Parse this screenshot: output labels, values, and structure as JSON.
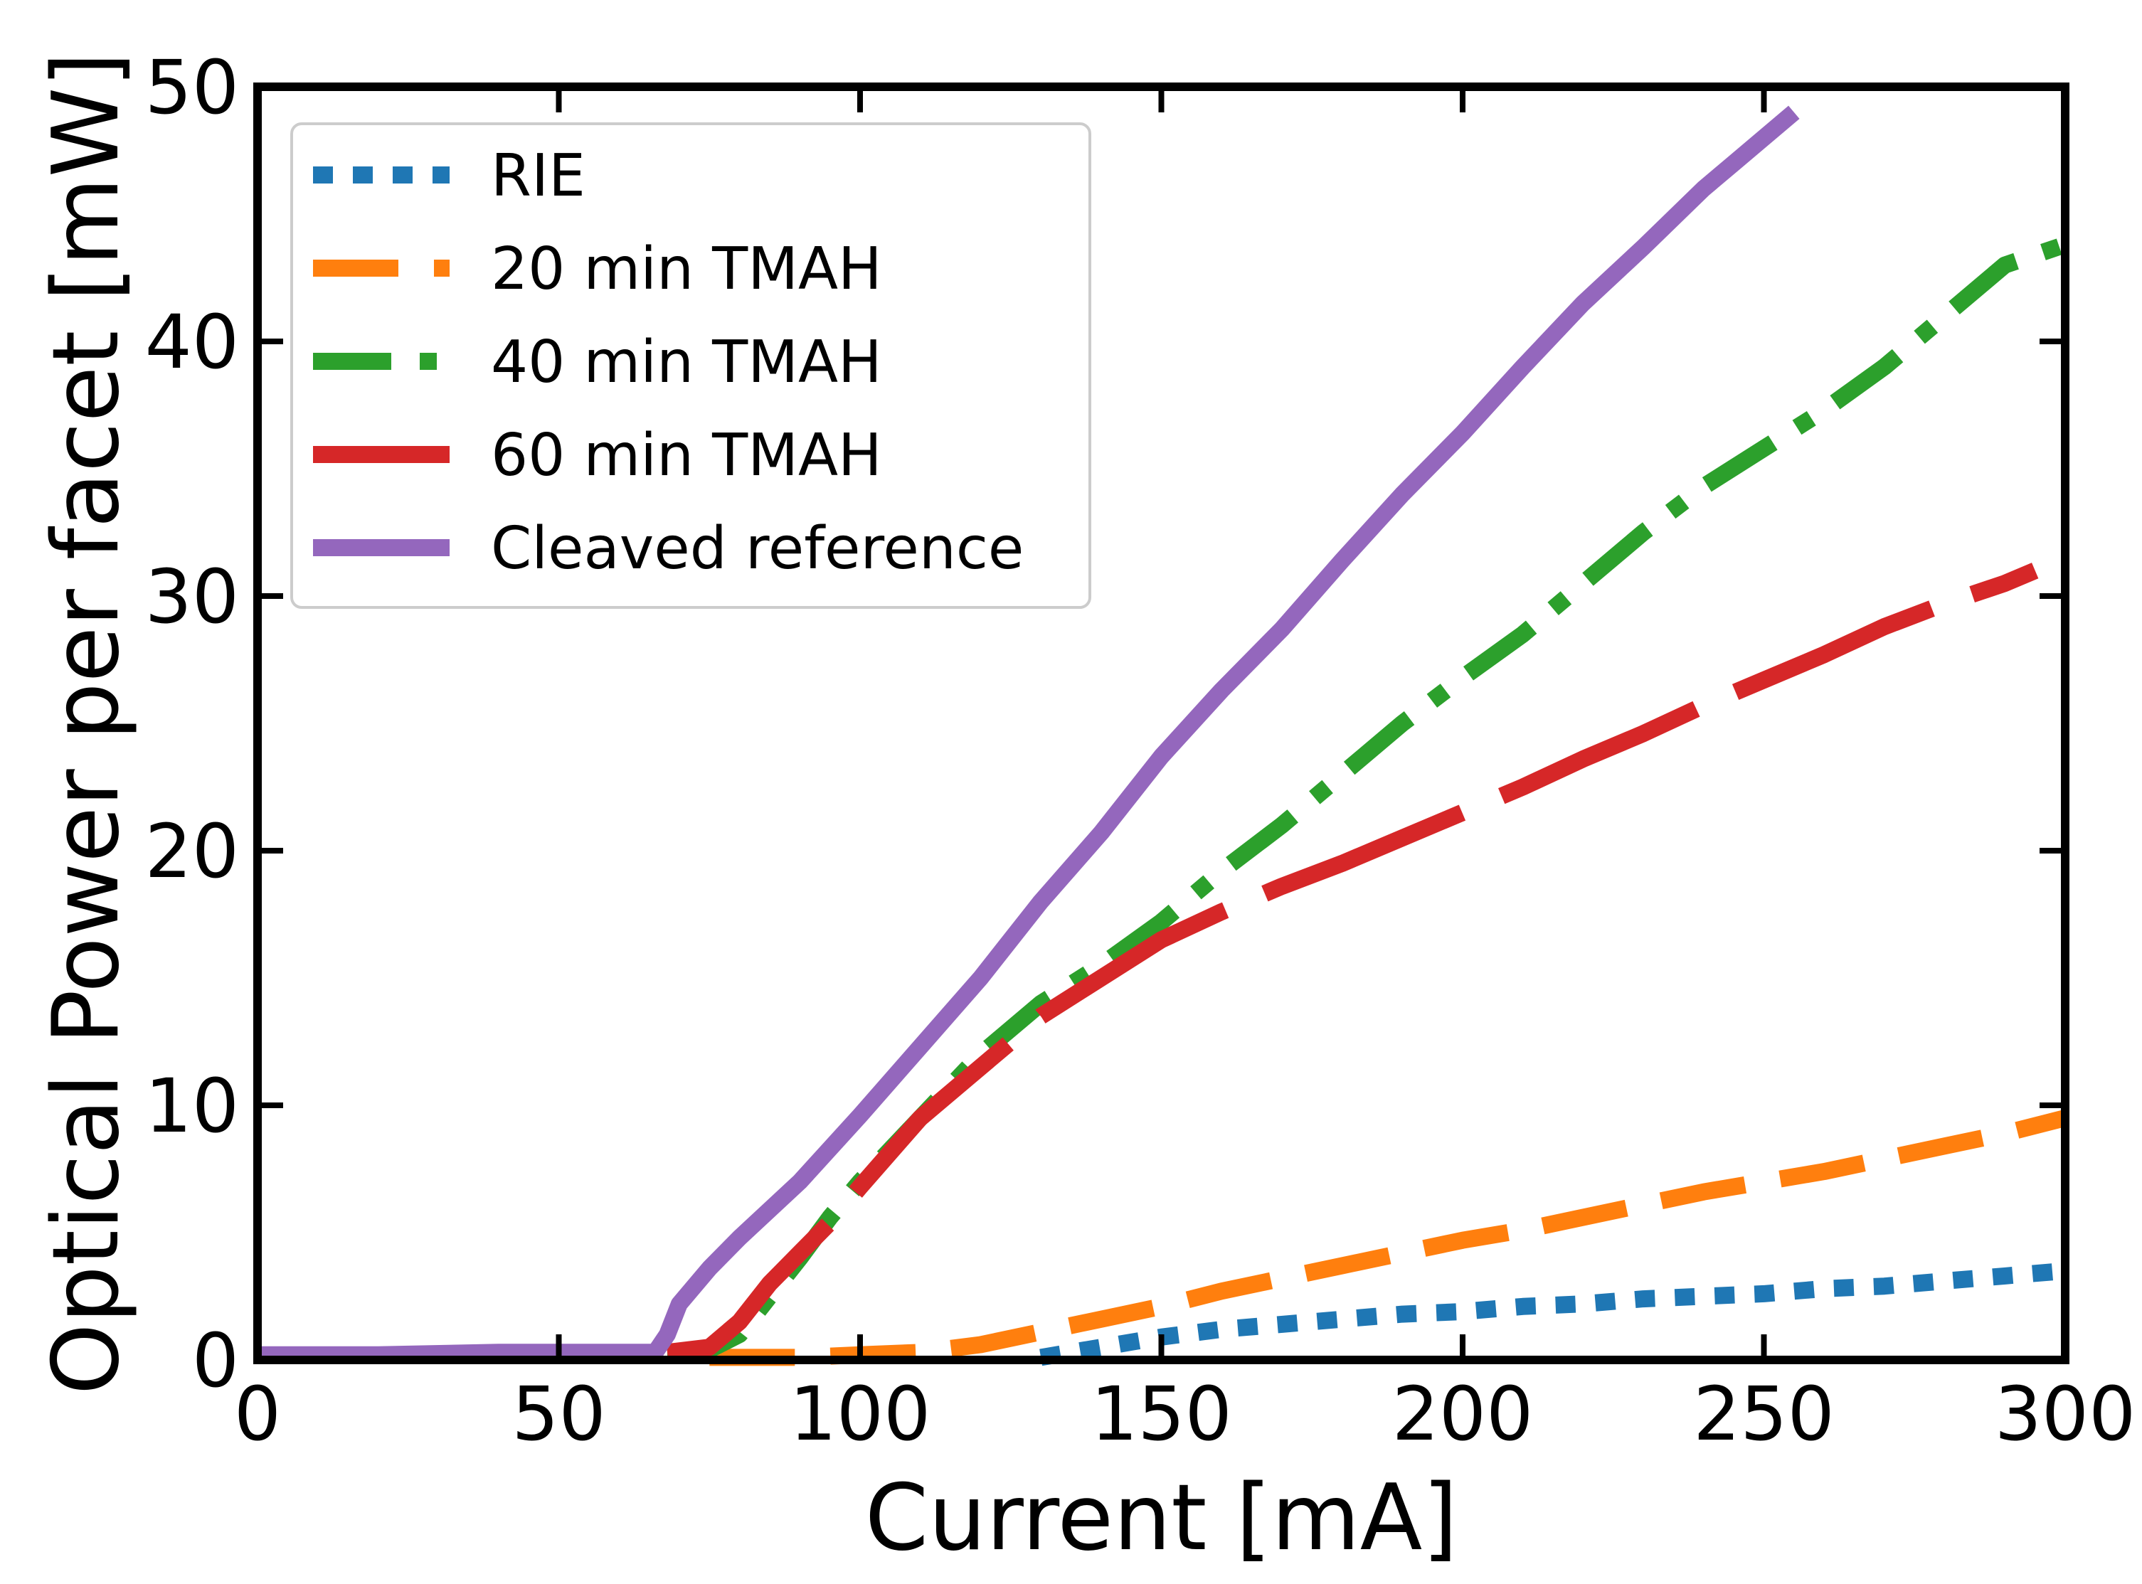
{
  "chart_data": {
    "type": "line",
    "title": "",
    "xlabel": "Current [mA]",
    "ylabel": "Optical Power per facet [mW]",
    "xlim": [
      0,
      300
    ],
    "ylim": [
      0,
      50
    ],
    "xticks": [
      0,
      50,
      100,
      150,
      200,
      250,
      300
    ],
    "yticks": [
      0,
      10,
      20,
      30,
      40,
      50
    ],
    "legend_position": "top-left",
    "series": [
      {
        "name": "RIE",
        "color": "#1f77b4",
        "style": "dotted",
        "x": [
          130,
          140,
          150,
          160,
          170,
          180,
          190,
          200,
          210,
          220,
          230,
          240,
          250,
          260,
          270,
          280,
          290,
          300
        ],
        "y": [
          0.1,
          0.5,
          0.9,
          1.2,
          1.4,
          1.6,
          1.8,
          1.9,
          2.1,
          2.2,
          2.4,
          2.5,
          2.6,
          2.8,
          2.9,
          3.1,
          3.3,
          3.5
        ]
      },
      {
        "name": "20 min TMAH",
        "color": "#ff7f0e",
        "style": "dashed",
        "x": [
          75,
          90,
          100,
          110,
          120,
          130,
          140,
          150,
          160,
          170,
          180,
          190,
          200,
          210,
          220,
          230,
          240,
          250,
          260,
          270,
          280,
          290,
          300
        ],
        "y": [
          0.1,
          0.1,
          0.2,
          0.3,
          0.6,
          1.1,
          1.6,
          2.1,
          2.7,
          3.2,
          3.7,
          4.2,
          4.7,
          5.1,
          5.6,
          6.1,
          6.6,
          7.0,
          7.4,
          7.9,
          8.4,
          8.9,
          9.5
        ]
      },
      {
        "name": "40 min TMAH",
        "color": "#2ca02c",
        "style": "dashdot",
        "x": [
          68,
          72,
          75,
          80,
          85,
          90,
          95,
          100,
          110,
          120,
          130,
          140,
          150,
          160,
          170,
          180,
          190,
          200,
          210,
          215,
          220,
          230,
          240,
          250,
          260,
          270,
          280,
          290,
          300
        ],
        "y": [
          0.3,
          0.3,
          0.4,
          1.0,
          2.5,
          4.0,
          5.6,
          7.0,
          9.5,
          12.0,
          14.0,
          15.5,
          17.2,
          19.2,
          21.0,
          23.0,
          25.0,
          26.8,
          28.5,
          29.5,
          30.5,
          32.5,
          34.3,
          35.8,
          37.3,
          39.0,
          41.0,
          43.0,
          43.8
        ]
      },
      {
        "name": "60 min TMAH",
        "color": "#d62728",
        "style": "longdash",
        "x": [
          68,
          75,
          80,
          85,
          90,
          95,
          100,
          110,
          120,
          130,
          140,
          150,
          160,
          170,
          180,
          190,
          200,
          210,
          220,
          230,
          240,
          250,
          260,
          270,
          280,
          290,
          295
        ],
        "y": [
          0.3,
          0.5,
          1.5,
          3.0,
          4.2,
          5.4,
          6.8,
          9.5,
          11.5,
          13.5,
          15.0,
          16.5,
          17.6,
          18.6,
          19.5,
          20.5,
          21.5,
          22.5,
          23.6,
          24.6,
          25.7,
          26.7,
          27.7,
          28.8,
          29.7,
          30.5,
          31.0
        ]
      },
      {
        "name": "Cleaved reference",
        "color": "#9467bd",
        "style": "solid",
        "x": [
          0,
          20,
          40,
          60,
          66,
          68,
          70,
          75,
          80,
          90,
          100,
          110,
          120,
          130,
          140,
          150,
          160,
          170,
          180,
          190,
          200,
          210,
          220,
          230,
          240,
          245,
          255
        ],
        "y": [
          0.2,
          0.2,
          0.3,
          0.3,
          0.3,
          1.0,
          2.2,
          3.6,
          4.8,
          7.0,
          9.6,
          12.3,
          15.0,
          18.0,
          20.7,
          23.7,
          26.3,
          28.7,
          31.4,
          34.0,
          36.4,
          39.0,
          41.5,
          43.7,
          46.0,
          47.0,
          49.0
        ]
      }
    ]
  }
}
